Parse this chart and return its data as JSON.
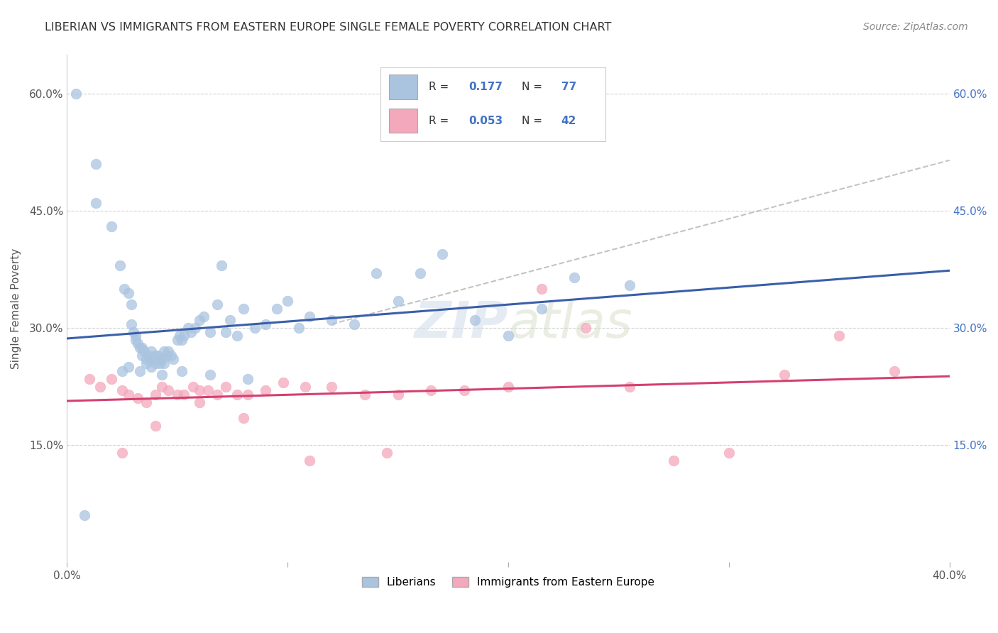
{
  "title": "LIBERIAN VS IMMIGRANTS FROM EASTERN EUROPE SINGLE FEMALE POVERTY CORRELATION CHART",
  "source": "Source: ZipAtlas.com",
  "ylabel": "Single Female Poverty",
  "xlim": [
    0.0,
    0.4
  ],
  "ylim": [
    0.0,
    0.65
  ],
  "x_ticks": [
    0.0,
    0.1,
    0.2,
    0.3,
    0.4
  ],
  "x_tick_labels": [
    "0.0%",
    "",
    "",
    "",
    "40.0%"
  ],
  "y_ticks_left": [
    0.15,
    0.3,
    0.45,
    0.6
  ],
  "y_tick_labels_left": [
    "15.0%",
    "30.0%",
    "45.0%",
    "60.0%"
  ],
  "y_ticks_right": [
    0.15,
    0.3,
    0.45,
    0.6
  ],
  "y_tick_labels_right": [
    "15.0%",
    "30.0%",
    "45.0%",
    "60.0%"
  ],
  "liberian_color": "#aac4e0",
  "eastern_europe_color": "#f4a8bc",
  "liberian_line_color": "#3a5faa",
  "eastern_europe_line_color": "#d44070",
  "dashed_line_color": "#aaaaaa",
  "R_liberian": 0.177,
  "N_liberian": 77,
  "R_eastern": 0.053,
  "N_eastern": 42,
  "watermark": "ZIPatlas",
  "legend_label_1": "Liberians",
  "legend_label_2": "Immigrants from Eastern Europe",
  "liberian_x": [
    0.004,
    0.013,
    0.013,
    0.02,
    0.024,
    0.026,
    0.028,
    0.029,
    0.029,
    0.03,
    0.031,
    0.031,
    0.032,
    0.033,
    0.034,
    0.034,
    0.035,
    0.036,
    0.036,
    0.037,
    0.038,
    0.038,
    0.039,
    0.04,
    0.04,
    0.041,
    0.042,
    0.042,
    0.043,
    0.044,
    0.044,
    0.045,
    0.046,
    0.047,
    0.048,
    0.05,
    0.051,
    0.052,
    0.053,
    0.055,
    0.056,
    0.058,
    0.06,
    0.062,
    0.065,
    0.068,
    0.07,
    0.072,
    0.074,
    0.077,
    0.08,
    0.085,
    0.09,
    0.095,
    0.1,
    0.105,
    0.11,
    0.12,
    0.13,
    0.14,
    0.15,
    0.16,
    0.17,
    0.185,
    0.2,
    0.215,
    0.23,
    0.255,
    0.025,
    0.028,
    0.033,
    0.038,
    0.043,
    0.052,
    0.065,
    0.082,
    0.008
  ],
  "liberian_y": [
    0.6,
    0.51,
    0.46,
    0.43,
    0.38,
    0.35,
    0.345,
    0.33,
    0.305,
    0.295,
    0.29,
    0.285,
    0.28,
    0.275,
    0.275,
    0.265,
    0.27,
    0.26,
    0.255,
    0.265,
    0.26,
    0.27,
    0.26,
    0.265,
    0.255,
    0.265,
    0.26,
    0.255,
    0.26,
    0.27,
    0.255,
    0.265,
    0.27,
    0.265,
    0.26,
    0.285,
    0.29,
    0.285,
    0.29,
    0.3,
    0.295,
    0.3,
    0.31,
    0.315,
    0.295,
    0.33,
    0.38,
    0.295,
    0.31,
    0.29,
    0.325,
    0.3,
    0.305,
    0.325,
    0.335,
    0.3,
    0.315,
    0.31,
    0.305,
    0.37,
    0.335,
    0.37,
    0.395,
    0.31,
    0.29,
    0.325,
    0.365,
    0.355,
    0.245,
    0.25,
    0.245,
    0.25,
    0.24,
    0.245,
    0.24,
    0.235,
    0.06
  ],
  "eastern_x": [
    0.01,
    0.015,
    0.02,
    0.025,
    0.028,
    0.032,
    0.036,
    0.04,
    0.043,
    0.046,
    0.05,
    0.053,
    0.057,
    0.06,
    0.064,
    0.068,
    0.072,
    0.077,
    0.082,
    0.09,
    0.098,
    0.108,
    0.12,
    0.135,
    0.15,
    0.165,
    0.18,
    0.2,
    0.215,
    0.235,
    0.255,
    0.275,
    0.3,
    0.325,
    0.35,
    0.375,
    0.025,
    0.04,
    0.06,
    0.08,
    0.11,
    0.145
  ],
  "eastern_y": [
    0.235,
    0.225,
    0.235,
    0.22,
    0.215,
    0.21,
    0.205,
    0.215,
    0.225,
    0.22,
    0.215,
    0.215,
    0.225,
    0.22,
    0.22,
    0.215,
    0.225,
    0.215,
    0.215,
    0.22,
    0.23,
    0.225,
    0.225,
    0.215,
    0.215,
    0.22,
    0.22,
    0.225,
    0.35,
    0.3,
    0.225,
    0.13,
    0.14,
    0.24,
    0.29,
    0.245,
    0.14,
    0.175,
    0.205,
    0.185,
    0.13,
    0.14
  ]
}
